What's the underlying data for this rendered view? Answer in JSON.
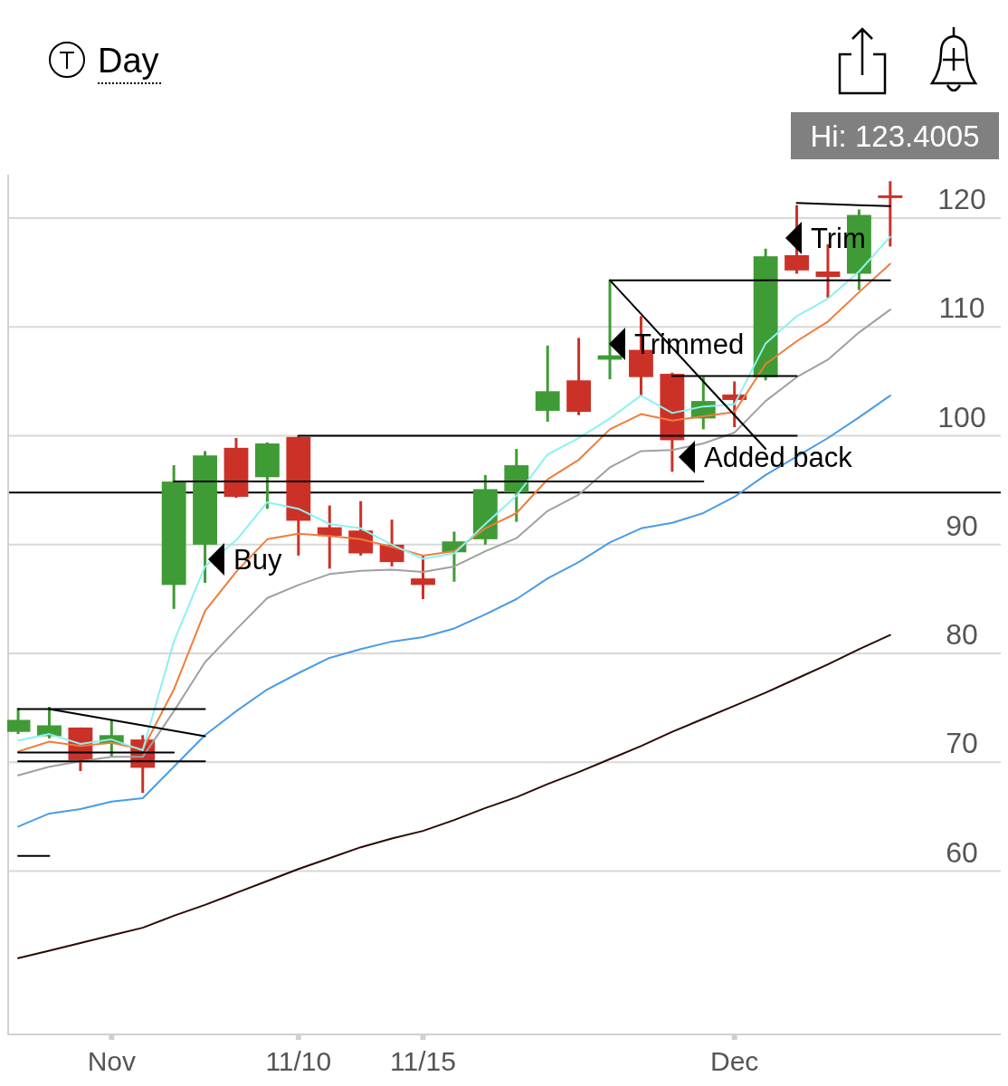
{
  "chart_data": {
    "type": "candlestick",
    "title": "Day",
    "grid": "y",
    "marker": "none",
    "line_style": "solid",
    "ylim": [
      45,
      124
    ],
    "categories": [
      null,
      null,
      null,
      "Nov",
      null,
      null,
      null,
      null,
      null,
      "11/10",
      null,
      null,
      null,
      "11/15",
      null,
      null,
      null,
      null,
      null,
      null,
      null,
      null,
      null,
      "Dec",
      null,
      null,
      null,
      null,
      null
    ],
    "yticks": [
      60,
      70,
      80,
      90,
      100,
      110,
      120
    ],
    "series": [
      {
        "type": "line",
        "color": "#2b0a05",
        "values": [
          52.0,
          52.7,
          53.4,
          54.1,
          54.8,
          55.9,
          56.9,
          58.0,
          59.1,
          60.2,
          61.2,
          62.2,
          63.0,
          63.7,
          64.7,
          65.8,
          66.8,
          68.0,
          69.1,
          70.3,
          71.5,
          72.8,
          74.0,
          75.2,
          76.4,
          77.7,
          79.0,
          80.4,
          81.7
        ]
      },
      {
        "type": "line",
        "color": "#4a9be8",
        "values": [
          64.1,
          65.3,
          65.7,
          66.4,
          66.7,
          69.6,
          72.5,
          74.7,
          76.7,
          78.2,
          79.6,
          80.4,
          81.1,
          81.5,
          82.3,
          83.6,
          85.0,
          86.9,
          88.4,
          90.2,
          91.5,
          92.0,
          92.9,
          94.4,
          96.4,
          98.1,
          99.8,
          101.7,
          103.7
        ]
      },
      {
        "type": "line",
        "color": "#a0a0a0",
        "values": [
          68.8,
          69.6,
          70.1,
          70.5,
          70.5,
          74.7,
          79.2,
          82.2,
          85.1,
          86.3,
          87.3,
          87.6,
          87.7,
          87.5,
          88.0,
          89.4,
          90.6,
          93.1,
          94.6,
          97.1,
          98.6,
          98.7,
          99.3,
          100.3,
          103.2,
          105.4,
          107.0,
          109.5,
          111.6
        ]
      },
      {
        "type": "line",
        "color": "#ee7d3b",
        "values": [
          71.0,
          71.9,
          71.5,
          71.8,
          71.2,
          76.7,
          83.9,
          87.5,
          90.5,
          91.0,
          90.8,
          90.5,
          89.8,
          89.0,
          89.4,
          91.5,
          92.9,
          96.0,
          97.8,
          100.6,
          102.0,
          101.4,
          101.8,
          102.2,
          106.6,
          108.7,
          110.5,
          113.2,
          115.8
        ]
      },
      {
        "type": "line",
        "color": "#8ef0f0",
        "values": [
          72.0,
          72.6,
          71.7,
          72.1,
          71.1,
          81.1,
          88.0,
          90.4,
          93.9,
          93.3,
          91.9,
          91.5,
          90.0,
          88.7,
          89.2,
          91.9,
          94.5,
          98.3,
          99.8,
          101.6,
          103.7,
          102.1,
          102.7,
          102.9,
          108.5,
          111.0,
          112.6,
          115.1,
          118.3
        ]
      },
      {
        "ohlc": [
          [
            72.8,
            75.0,
            72.6,
            73.9
          ],
          [
            72.4,
            75.1,
            72.2,
            73.4
          ],
          [
            73.2,
            73.2,
            69.2,
            70.2
          ],
          [
            71.7,
            73.9,
            70.5,
            72.5
          ],
          [
            72.1,
            72.5,
            67.2,
            69.5
          ],
          [
            86.3,
            97.3,
            84.1,
            95.8
          ],
          [
            90.0,
            98.6,
            86.5,
            98.2
          ],
          [
            98.9,
            99.8,
            94.3,
            94.4
          ],
          [
            96.2,
            99.4,
            93.3,
            99.3
          ],
          [
            99.9,
            100.0,
            89.0,
            92.2
          ],
          [
            91.6,
            93.6,
            87.8,
            90.8
          ],
          [
            91.3,
            94.0,
            89.0,
            89.2
          ],
          [
            90.0,
            92.3,
            88.0,
            88.4
          ],
          [
            86.9,
            89.0,
            85.0,
            86.3
          ],
          [
            89.3,
            91.2,
            86.6,
            90.3
          ],
          [
            90.5,
            96.4,
            90.0,
            95.1
          ],
          [
            94.8,
            98.8,
            92.1,
            97.3
          ],
          [
            102.3,
            108.3,
            101.3,
            104.1
          ],
          [
            105.1,
            109.0,
            101.9,
            102.2
          ],
          [
            107.0,
            114.3,
            105.2,
            107.4
          ],
          [
            107.9,
            111.0,
            103.7,
            105.4
          ],
          [
            105.7,
            105.8,
            96.7,
            99.6
          ],
          [
            101.6,
            105.4,
            100.6,
            103.2
          ],
          [
            103.8,
            105.0,
            100.8,
            103.3
          ],
          [
            105.4,
            117.2,
            105.1,
            116.5
          ],
          [
            116.6,
            121.2,
            114.9,
            115.2
          ],
          [
            115.1,
            117.6,
            112.7,
            114.6
          ],
          [
            114.9,
            120.8,
            113.4,
            120.3
          ],
          [
            122.1,
            123.4,
            117.4,
            122.0
          ]
        ],
        "colors": [
          "#3f9b35",
          "#3f9b35",
          "#cc3127",
          "#3f9b35",
          "#cc3127",
          "#3f9b35",
          "#3f9b35",
          "#cc3127",
          "#3f9b35",
          "#cc3127",
          "#cc3127",
          "#cc3127",
          "#cc3127",
          "#cc3127",
          "#3f9b35",
          "#3f9b35",
          "#3f9b35",
          "#3f9b35",
          "#cc3127",
          "#3f9b35",
          "#cc3127",
          "#cc3127",
          "#3f9b35",
          "#cc3127",
          "#3f9b35",
          "#cc3127",
          "#cc3127",
          "#3f9b35",
          "#cc3127"
        ]
      },
      {
        "type": "line",
        "color": "#000000",
        "values": [
          74.9,
          74.9,
          74.9,
          74.9,
          74.9,
          74.9,
          74.9,
          null,
          null,
          null,
          null,
          null,
          null,
          null,
          null,
          null,
          null,
          null,
          null,
          null,
          null,
          null,
          null,
          null,
          null,
          null,
          null,
          null,
          null
        ]
      },
      {
        "type": "line",
        "color": "#000000",
        "values": [
          null,
          74.9,
          74.4,
          73.9,
          73.4,
          72.9,
          72.4,
          null,
          null,
          null,
          null,
          null,
          null,
          null,
          null,
          null,
          null,
          null,
          null,
          null,
          null,
          null,
          null,
          null,
          null,
          null,
          null,
          null,
          null
        ]
      },
      {
        "type": "line",
        "color": "#000000",
        "values": [
          70.9,
          70.9,
          70.9,
          70.9,
          70.9,
          70.9,
          null,
          null,
          null,
          null,
          null,
          null,
          null,
          null,
          null,
          null,
          null,
          null,
          null,
          null,
          null,
          null,
          null,
          null,
          null,
          null,
          null,
          null,
          null
        ]
      },
      {
        "type": "line",
        "color": "#000000",
        "values": [
          70.1,
          70.1,
          70.1,
          70.1,
          70.1,
          70.1,
          70.1,
          null,
          null,
          null,
          null,
          null,
          null,
          null,
          null,
          null,
          null,
          null,
          null,
          null,
          null,
          null,
          null,
          null,
          null,
          null,
          null,
          null,
          null
        ]
      },
      {
        "type": "line",
        "color": "#000000",
        "values": [
          61.4,
          61.4,
          null,
          null,
          null,
          null,
          null,
          null,
          null,
          null,
          null,
          null,
          null,
          null,
          null,
          null,
          null,
          null,
          null,
          null,
          null,
          null,
          null,
          null,
          null,
          null,
          null,
          null,
          null
        ]
      },
      {
        "type": "line",
        "color": "#000000",
        "values": [
          null,
          null,
          null,
          null,
          null,
          null,
          null,
          null,
          null,
          100.0,
          100.0,
          100.0,
          100.0,
          100.0,
          100.0,
          100.0,
          100.0,
          100.0,
          100.0,
          100.0,
          100.0,
          100.0,
          100.0,
          100.0,
          100.0,
          100.0,
          null,
          null,
          null
        ]
      },
      {
        "type": "line",
        "color": "#000000",
        "values": [
          null,
          null,
          null,
          null,
          null,
          95.8,
          95.8,
          95.8,
          95.8,
          95.8,
          95.8,
          95.8,
          95.8,
          95.8,
          95.8,
          95.8,
          95.8,
          95.8,
          95.8,
          95.8,
          95.8,
          95.8,
          95.8,
          null,
          null,
          null,
          null,
          null,
          null
        ]
      },
      {
        "type": "line",
        "color": "#000000",
        "values": [
          null,
          null,
          null,
          null,
          null,
          null,
          null,
          null,
          null,
          null,
          null,
          null,
          null,
          null,
          null,
          null,
          null,
          null,
          null,
          114.3,
          114.3,
          114.3,
          114.3,
          114.3,
          114.3,
          114.3,
          114.3,
          114.3,
          114.3
        ]
      },
      {
        "type": "line",
        "color": "#000000",
        "values": [
          null,
          null,
          null,
          null,
          null,
          null,
          null,
          null,
          null,
          null,
          null,
          null,
          null,
          null,
          null,
          null,
          null,
          null,
          null,
          114.3,
          111.2,
          108.1,
          105.0,
          101.9,
          98.8,
          null,
          null,
          null,
          null
        ]
      },
      {
        "type": "line",
        "color": "#000000",
        "values": [
          null,
          null,
          null,
          null,
          null,
          null,
          null,
          null,
          null,
          null,
          null,
          null,
          null,
          null,
          null,
          null,
          null,
          null,
          null,
          null,
          null,
          105.5,
          105.5,
          105.5,
          105.5,
          105.5,
          null,
          null,
          null
        ]
      },
      {
        "type": "line",
        "color": "#000000",
        "values": [
          null,
          null,
          null,
          null,
          null,
          null,
          null,
          null,
          null,
          null,
          null,
          null,
          null,
          null,
          null,
          null,
          null,
          null,
          null,
          null,
          null,
          null,
          null,
          null,
          null,
          121.4,
          121.3,
          121.2,
          121.1
        ]
      }
    ],
    "ref_lines": [
      {
        "axis": "y",
        "value": 94.8,
        "color": "#000000"
      }
    ],
    "annotations": [
      "Hi: 123.4005",
      "Buy",
      "Trimmed",
      "Added back",
      "Trim"
    ]
  }
}
